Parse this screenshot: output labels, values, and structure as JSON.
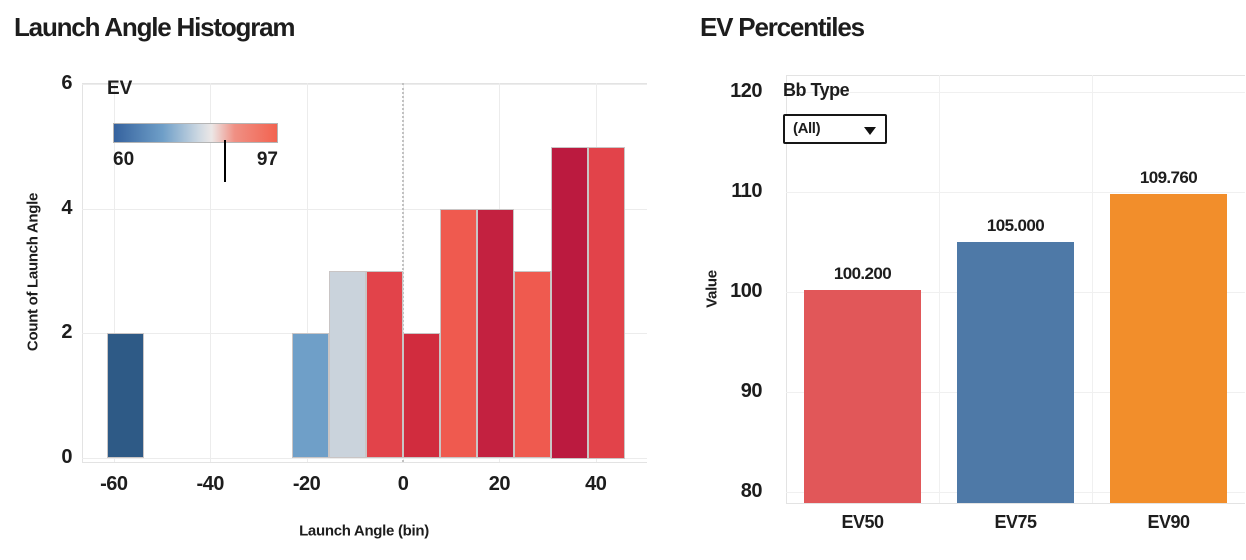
{
  "left_chart": {
    "title": "Launch Angle Histogram",
    "x_label": "Launch Angle (bin)",
    "y_label": "Count of Launch Angle",
    "legend": {
      "title": "EV",
      "min_label": "60",
      "max_label": "97"
    }
  },
  "right_chart": {
    "title": "EV Percentiles",
    "y_label": "Value",
    "filter": {
      "label": "Bb Type",
      "value": "(All)"
    }
  },
  "chart_data": [
    {
      "type": "bar",
      "subtype": "histogram",
      "title": "Launch Angle Histogram",
      "xlabel": "Launch Angle (bin)",
      "ylabel": "Count of Launch Angle",
      "x_ticks": [
        -60,
        -40,
        -20,
        0,
        20,
        40
      ],
      "y_ticks": [
        0,
        2,
        4,
        6
      ],
      "xlim": [
        -66.6,
        50.6
      ],
      "ylim": [
        0,
        6.1
      ],
      "bin_width": 7.67,
      "grid": true,
      "reference_line_x": 0,
      "bars": [
        {
          "x0": -61.33,
          "x1": -53.67,
          "count": 2,
          "color": "#2e5a86"
        },
        {
          "x0": -23.0,
          "x1": -15.33,
          "count": 2,
          "color": "#6f9fc8"
        },
        {
          "x0": -15.33,
          "x1": -7.67,
          "count": 3,
          "color": "#cad3dc"
        },
        {
          "x0": -7.67,
          "x1": 0.0,
          "count": 3,
          "color": "#e2434a"
        },
        {
          "x0": 0.0,
          "x1": 7.67,
          "count": 2,
          "color": "#d12c3e"
        },
        {
          "x0": 7.67,
          "x1": 15.33,
          "count": 4,
          "color": "#ef5a4f"
        },
        {
          "x0": 15.33,
          "x1": 23.0,
          "count": 4,
          "color": "#c32140"
        },
        {
          "x0": 23.0,
          "x1": 30.67,
          "count": 3,
          "color": "#ef5a4f"
        },
        {
          "x0": 30.67,
          "x1": 38.33,
          "count": 5,
          "color": "#bb1a3f"
        },
        {
          "x0": 38.33,
          "x1": 46.0,
          "count": 5,
          "color": "#e2434a"
        }
      ],
      "color_legend": {
        "title": "EV",
        "min": 60,
        "max": 97,
        "marker_fraction": 0.67,
        "gradient_stops": [
          "#35629e 0%",
          "#6f9fc8 30%",
          "#cdd8e2 52%",
          "#ece7e6 60%",
          "#f09084 74%",
          "#f26350 100%"
        ]
      }
    },
    {
      "type": "bar",
      "title": "EV Percentiles",
      "ylabel": "Value",
      "categories": [
        "EV50",
        "EV75",
        "EV90"
      ],
      "values": [
        100.2,
        105.0,
        109.76
      ],
      "value_labels": [
        "100.200",
        "105.000",
        "109.760"
      ],
      "colors": [
        "#e15759",
        "#4e79a7",
        "#f28e2b"
      ],
      "y_ticks": [
        80,
        90,
        100,
        110,
        120
      ],
      "ylim": [
        78.9,
        121.7
      ],
      "grid": true,
      "filter": {
        "label": "Bb Type",
        "value": "(All)"
      }
    }
  ]
}
